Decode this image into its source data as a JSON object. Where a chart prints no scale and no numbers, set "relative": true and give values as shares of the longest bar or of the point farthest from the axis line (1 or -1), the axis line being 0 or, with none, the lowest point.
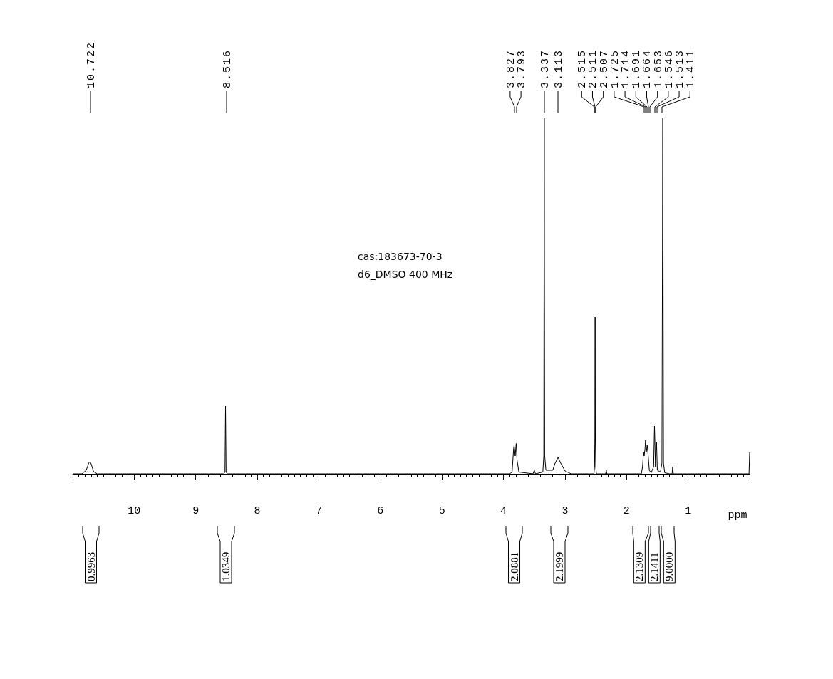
{
  "chart_data": {
    "type": "line",
    "xlabel": "ppm",
    "relative": true,
    "xlim": [
      11,
      0
    ],
    "xticks": [
      {
        "value": 11,
        "label": null
      },
      10,
      9,
      8,
      7,
      6,
      5,
      4,
      3,
      2,
      1,
      {
        "value": 0,
        "label": null
      }
    ],
    "series": [
      {
        "color": "#000000",
        "x": [
          11.0,
          10.85,
          10.78,
          10.74,
          10.722,
          10.7,
          10.66,
          10.6,
          8.55,
          8.525,
          8.516,
          8.507,
          8.48,
          3.9,
          3.86,
          3.835,
          3.827,
          3.81,
          3.793,
          3.78,
          3.75,
          3.52,
          3.5,
          3.48,
          3.36,
          3.345,
          3.337,
          3.33,
          3.31,
          3.2,
          3.16,
          3.113,
          3.07,
          3.0,
          2.9,
          2.53,
          2.52,
          2.515,
          2.511,
          2.507,
          2.5,
          2.49,
          2.34,
          2.33,
          2.32,
          1.76,
          1.74,
          1.725,
          1.714,
          1.7,
          1.691,
          1.68,
          1.664,
          1.653,
          1.63,
          1.6,
          1.56,
          1.546,
          1.53,
          1.513,
          1.5,
          1.45,
          1.425,
          1.411,
          1.4,
          1.38,
          1.3,
          1.26,
          1.25,
          1.24,
          0.02,
          0.01,
          0.0
        ],
        "values": [
          0,
          0,
          0.01,
          0.03,
          0.034,
          0.028,
          0.006,
          0,
          0,
          0.004,
          0.19,
          0.004,
          0,
          0,
          0.005,
          0.07,
          0.08,
          0.05,
          0.085,
          0.04,
          0.005,
          0,
          0.01,
          0,
          0.005,
          0.05,
          1,
          0.05,
          0.01,
          0.01,
          0.03,
          0.046,
          0.03,
          0.008,
          0,
          0,
          0.02,
          0.1,
          0.44,
          0.1,
          0.02,
          0,
          0,
          0.01,
          0,
          0,
          0.02,
          0.06,
          0.05,
          0.07,
          0.094,
          0.06,
          0.08,
          0.06,
          0.01,
          0.003,
          0.02,
          0.134,
          0.02,
          0.09,
          0.01,
          0.005,
          0.03,
          1,
          0.03,
          0.003,
          0,
          0,
          0.02,
          0,
          0,
          0,
          0.06
        ]
      }
    ],
    "annotations": [
      "10.722",
      "8.516",
      "3.827",
      "3.793",
      "3.337",
      "3.113",
      "2.515",
      "2.511",
      "2.507",
      "1.725",
      "1.714",
      "1.691",
      "1.664",
      "1.653",
      "1.546",
      "1.513",
      "1.411",
      "0.9963",
      "1.0349",
      "2.0881",
      "2.1999",
      "2.1309",
      "2.1411",
      "9.0000",
      "cas:183673-70-3",
      "d6_DMSO  400 MHz"
    ]
  }
}
